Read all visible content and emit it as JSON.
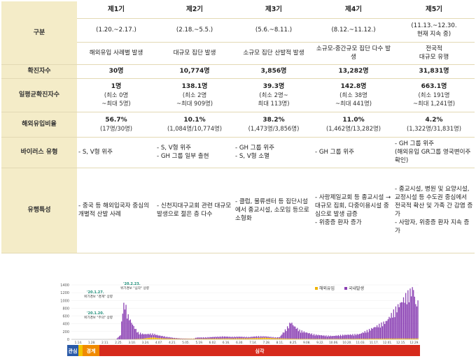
{
  "table": {
    "header_label": "구분",
    "periods": [
      "제1기",
      "제2기",
      "제3기",
      "제4기",
      "제5기"
    ],
    "dates": [
      "(1.20.~2.17.)",
      "(2.18.~5.5.)",
      "(5.6.~8.11.)",
      "(8.12.~11.12.)",
      "(11.13.~12.30.\n현재 지속 중)"
    ],
    "features": [
      "해외유입 사례별 발생",
      "대규모 집단 발생",
      "소규모 집단 산발적 발생",
      "소규모-중간규모 집단 다수 발생",
      "전국적\n대규모 유행"
    ],
    "confirmed": {
      "label": "확진자수",
      "values": [
        "30명",
        "10,774명",
        "3,856명",
        "13,282명",
        "31,831명"
      ]
    },
    "daily_avg": {
      "label": "일평균확진자수",
      "values": [
        {
          "main": "1명",
          "sub": "(최소 0명\n~최대 5명)"
        },
        {
          "main": "138.1명",
          "sub": "(최소 2명\n~최대 909명)"
        },
        {
          "main": "39.3명",
          "sub": "(최소 2명~\n최대 113명)"
        },
        {
          "main": "142.8명",
          "sub": "(최소 38명\n~최대 441명)"
        },
        {
          "main": "663.1명",
          "sub": "(최소 191명\n~최대 1,241명)"
        }
      ]
    },
    "overseas_ratio": {
      "label": "해외유입비율",
      "values": [
        {
          "main": "56.7%",
          "sub": "(17명/30명)"
        },
        {
          "main": "10.1%",
          "sub": "(1,084명/10,774명)"
        },
        {
          "main": "38.2%",
          "sub": "(1,473명/3,856명)"
        },
        {
          "main": "11.0%",
          "sub": "(1,462명/13,282명)"
        },
        {
          "main": "4.2%",
          "sub": "(1,322명/31,831명)"
        }
      ]
    },
    "virus_type": {
      "label": "바이러스 유형",
      "values": [
        "- S, V형 위주",
        "- S, V형 위주\n- GH 그룹 일부 출현",
        "- GH 그룹 위주\n- S, V형 소멸",
        "- GH 그룹 위주",
        "- GH 그룹 위주\n(해외유입 GR그룹 영국변이주 확인)"
      ]
    },
    "characteristics": {
      "label": "유행특성",
      "values": [
        "- 중국 등 해외입국자 중심의 개별적 산발 사례",
        "- 신천지대구교회 관련 대규모 발생으로 젊은 층 다수",
        "- 클럽, 물류센터 등 집단시설에서 종교시설, 소모임 등으로 소형화",
        "- 사랑제일교회 등 종교시설 → 대규모 집회, 다중이용시설 중심으로 발생 급증\n- 위중증 환자 증가",
        "- 종교시설, 병원 및 요양시설, 교정시설 등 수도권 중심에서 전국적 확산 및 가족 간 감염 증가\n- 사망자, 위중증 환자 지속 증가"
      ]
    }
  },
  "chart_data": {
    "type": "bar",
    "title": "",
    "xlabel": "",
    "ylabel": "",
    "ylim": [
      0,
      1400
    ],
    "yticks": [
      0,
      200,
      400,
      600,
      800,
      1000,
      1200,
      1400
    ],
    "xticks": [
      "1.14.",
      "1.28.",
      "2.11.",
      "2.25.",
      "3.10.",
      "3.24.",
      "4.07.",
      "4.21.",
      "5.05.",
      "5.19.",
      "6.02.",
      "6.16.",
      "6.30.",
      "7.14.",
      "7.28.",
      "8.11.",
      "8.25.",
      "9.08.",
      "9.22.",
      "10.06.",
      "10.20.",
      "11.03.",
      "11.17.",
      "12.01.",
      "12.15.",
      "12.29."
    ],
    "legend": [
      {
        "name": "해외유입",
        "color": "#f0b400"
      },
      {
        "name": "국내발생",
        "color": "#8a3fb3"
      }
    ],
    "legend_position": "top-right",
    "series": [
      {
        "name": "국내발생",
        "color": "#8a3fb3",
        "anchors": [
          [
            0,
            0
          ],
          [
            40,
            0
          ],
          [
            44,
            100
          ],
          [
            46,
            700
          ],
          [
            48,
            900
          ],
          [
            50,
            600
          ],
          [
            53,
            450
          ],
          [
            56,
            300
          ],
          [
            60,
            150
          ],
          [
            66,
            100
          ],
          [
            74,
            80
          ],
          [
            80,
            60
          ],
          [
            86,
            40
          ],
          [
            92,
            20
          ],
          [
            100,
            10
          ],
          [
            110,
            5
          ],
          [
            113,
            30
          ],
          [
            120,
            30
          ],
          [
            128,
            40
          ],
          [
            136,
            50
          ],
          [
            144,
            40
          ],
          [
            152,
            40
          ],
          [
            160,
            30
          ],
          [
            168,
            40
          ],
          [
            175,
            30
          ],
          [
            180,
            25
          ],
          [
            185,
            20
          ],
          [
            188,
            30
          ],
          [
            190,
            100
          ],
          [
            193,
            200
          ],
          [
            196,
            300
          ],
          [
            198,
            400
          ],
          [
            201,
            300
          ],
          [
            206,
            200
          ],
          [
            212,
            150
          ],
          [
            220,
            100
          ],
          [
            228,
            80
          ],
          [
            236,
            70
          ],
          [
            244,
            90
          ],
          [
            252,
            100
          ],
          [
            260,
            110
          ],
          [
            268,
            200
          ],
          [
            276,
            300
          ],
          [
            284,
            400
          ],
          [
            290,
            600
          ],
          [
            296,
            800
          ],
          [
            302,
            1000
          ],
          [
            306,
            1100
          ],
          [
            309,
            1200
          ],
          [
            311,
            800
          ],
          [
            313,
            850
          ]
        ],
        "n": 314
      },
      {
        "name": "해외유입",
        "color": "#f0b400",
        "anchors": [
          [
            0,
            0
          ],
          [
            40,
            1
          ],
          [
            55,
            5
          ],
          [
            64,
            15
          ],
          [
            70,
            40
          ],
          [
            74,
            50
          ],
          [
            78,
            30
          ],
          [
            86,
            20
          ],
          [
            100,
            10
          ],
          [
            120,
            15
          ],
          [
            140,
            20
          ],
          [
            160,
            25
          ],
          [
            175,
            40
          ],
          [
            185,
            25
          ],
          [
            200,
            15
          ],
          [
            230,
            10
          ],
          [
            260,
            15
          ],
          [
            290,
            20
          ],
          [
            313,
            20
          ]
        ],
        "n": 314
      }
    ],
    "annotations": [
      {
        "date": "'20.1.27.",
        "text": "위기경보 \"경계\" 상향"
      },
      {
        "date": "'20.1.20.",
        "text": "위기경보 \"주의\" 상향"
      },
      {
        "date": "'20.2.23.",
        "text": "위기경보 \"심각\" 상향"
      }
    ],
    "alert_levels": [
      {
        "label": "관심",
        "color": "#2a5aa8"
      },
      {
        "label": "",
        "color": "#f2c400"
      },
      {
        "label": "경계",
        "color": "#f08a00"
      },
      {
        "label": "심각",
        "color": "#d62a1c"
      }
    ]
  }
}
